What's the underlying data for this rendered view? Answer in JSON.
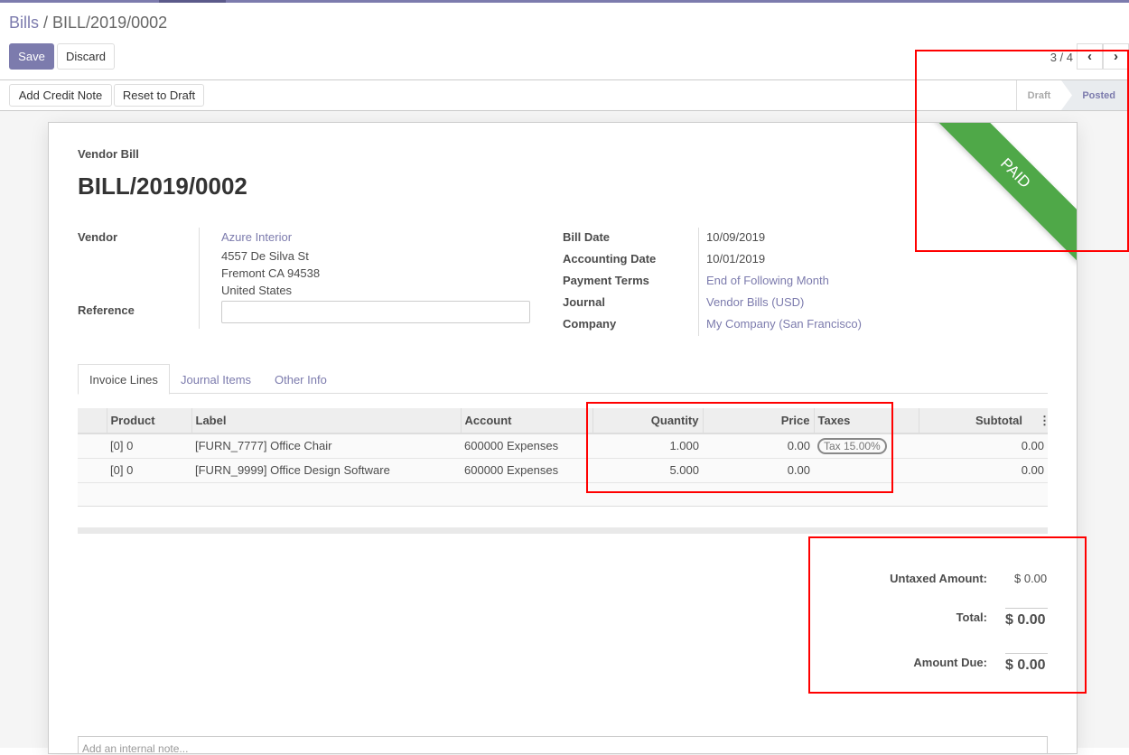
{
  "breadcrumb": {
    "parent": "Bills",
    "current": "BILL/2019/0002"
  },
  "buttons": {
    "save": "Save",
    "discard": "Discard",
    "add_credit_note": "Add Credit Note",
    "reset_to_draft": "Reset to Draft"
  },
  "pager": {
    "value": "3 / 4"
  },
  "status": {
    "stages": [
      "Draft",
      "Posted"
    ],
    "current": "Posted"
  },
  "ribbon": {
    "text": "PAID",
    "color": "#4fa848"
  },
  "form": {
    "doc_type": "Vendor Bill",
    "name": "BILL/2019/0002",
    "vendor_label": "Vendor",
    "vendor": "Azure Interior",
    "address": [
      "4557 De Silva St",
      "Fremont CA 94538",
      "United States"
    ],
    "reference_label": "Reference",
    "reference": "",
    "right": [
      {
        "label": "Bill Date",
        "value": "10/09/2019",
        "link": false
      },
      {
        "label": "Accounting Date",
        "value": "10/01/2019",
        "link": false
      },
      {
        "label": "Payment Terms",
        "value": "End of Following Month",
        "link": true
      },
      {
        "label": "Journal",
        "value": "Vendor Bills (USD)",
        "link": true
      },
      {
        "label": "Company",
        "value": "My Company (San Francisco)",
        "link": true
      }
    ]
  },
  "tabs": [
    "Invoice Lines",
    "Journal Items",
    "Other Info"
  ],
  "lines": {
    "headers": [
      "Product",
      "Label",
      "Account",
      "Quantity",
      "Price",
      "Taxes",
      "Subtotal"
    ],
    "rows": [
      {
        "product": "[0] 0",
        "label": "[FURN_7777] Office Chair",
        "account": "600000 Expenses",
        "quantity": "1.000",
        "price": "0.00",
        "taxes": "Tax 15.00%",
        "subtotal": "0.00"
      },
      {
        "product": "[0] 0",
        "label": "[FURN_9999] Office Design Software",
        "account": "600000 Expenses",
        "quantity": "5.000",
        "price": "0.00",
        "taxes": "",
        "subtotal": "0.00"
      }
    ]
  },
  "totals": {
    "untaxed_label": "Untaxed Amount:",
    "untaxed": "$ 0.00",
    "total_label": "Total:",
    "total": "$ 0.00",
    "due_label": "Amount Due:",
    "due": "$ 0.00"
  },
  "note": {
    "placeholder": "Add an internal note..."
  }
}
